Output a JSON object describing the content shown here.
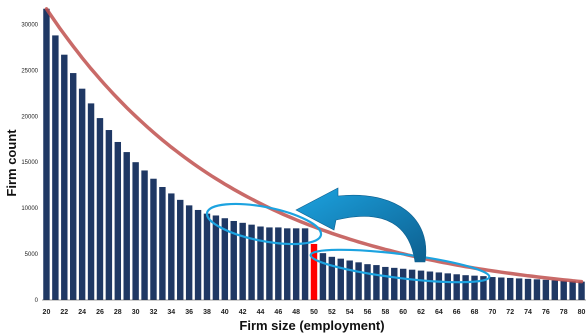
{
  "chart_data": {
    "type": "bar",
    "xlabel": "Firm size (employment)",
    "ylabel": "Firm count",
    "ylim": [
      0,
      32000
    ],
    "yticks": [
      0,
      5000,
      10000,
      15000,
      20000,
      25000,
      30000
    ],
    "ytick_labels": [
      "0",
      "5000",
      "10000",
      "15000",
      "20000",
      "25000",
      "30000"
    ],
    "xticks": [
      20,
      22,
      24,
      26,
      28,
      30,
      32,
      34,
      36,
      38,
      40,
      42,
      44,
      46,
      48,
      50,
      52,
      54,
      56,
      58,
      60,
      62,
      64,
      66,
      68,
      70,
      72,
      74,
      76,
      78,
      80
    ],
    "x": [
      20,
      21,
      22,
      23,
      24,
      25,
      26,
      27,
      28,
      29,
      30,
      31,
      32,
      33,
      34,
      35,
      36,
      37,
      38,
      39,
      40,
      41,
      42,
      43,
      44,
      45,
      46,
      47,
      48,
      49,
      50,
      51,
      52,
      53,
      54,
      55,
      56,
      57,
      58,
      59,
      60,
      61,
      62,
      63,
      64,
      65,
      66,
      67,
      68,
      69,
      70,
      71,
      72,
      73,
      74,
      75,
      76,
      77,
      78,
      79,
      80
    ],
    "values": [
      31700,
      28800,
      26700,
      24700,
      23000,
      21400,
      19800,
      18500,
      17200,
      16100,
      15000,
      14100,
      13200,
      12300,
      11600,
      10900,
      10300,
      9800,
      9400,
      9200,
      8900,
      8600,
      8400,
      8200,
      8000,
      7900,
      7900,
      7800,
      7800,
      7800,
      6100,
      5100,
      4700,
      4500,
      4300,
      4100,
      3900,
      3800,
      3600,
      3500,
      3400,
      3300,
      3200,
      3100,
      3000,
      2900,
      2800,
      2700,
      2650,
      2600,
      2500,
      2450,
      2400,
      2350,
      2300,
      2250,
      2200,
      2150,
      2100,
      2050,
      2000
    ],
    "highlight_x": 50,
    "colors": {
      "bar": "#1f3864",
      "highlight": "#ff0000",
      "curve": "#c0504d",
      "arrow": "#1ca3e0"
    }
  }
}
